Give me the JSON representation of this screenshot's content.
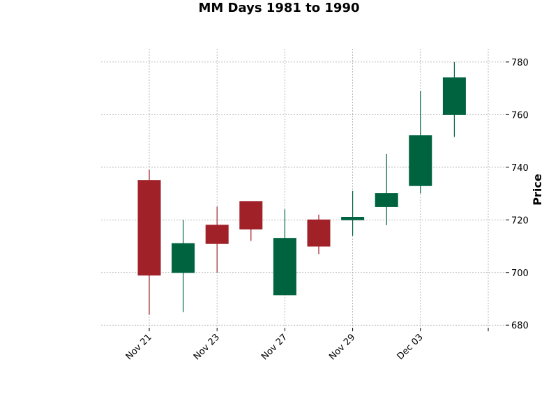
{
  "chart_data": {
    "type": "candlestick",
    "title": "MM Days 1981 to 1990",
    "ylabel": "Price",
    "xlabel": "",
    "ylim": [
      679,
      785
    ],
    "yticks": [
      680,
      700,
      720,
      740,
      760,
      780
    ],
    "xtick_labels": [
      {
        "index": 0,
        "label": "Nov 21"
      },
      {
        "index": 2,
        "label": "Nov 23"
      },
      {
        "index": 4,
        "label": "Nov 27"
      },
      {
        "index": 6,
        "label": "Nov 29"
      },
      {
        "index": 8,
        "label": "Dec 03"
      },
      {
        "index": 10,
        "label": ""
      }
    ],
    "grid": true,
    "colors": {
      "up": "#006340",
      "down": "#a02128",
      "grid": "#a8a8a8"
    },
    "candles": [
      {
        "open": 735,
        "high": 739,
        "low": 684,
        "close": 699
      },
      {
        "open": 700,
        "high": 720,
        "low": 685,
        "close": 711
      },
      {
        "open": 718,
        "high": 725,
        "low": 700,
        "close": 711
      },
      {
        "open": 727,
        "high": 727,
        "low": 712,
        "close": 716.5
      },
      {
        "open": 691.5,
        "high": 724,
        "low": 691.5,
        "close": 713
      },
      {
        "open": 720,
        "high": 722,
        "low": 707,
        "close": 710
      },
      {
        "open": 720,
        "high": 731,
        "low": 714,
        "close": 721
      },
      {
        "open": 725,
        "high": 745,
        "low": 718,
        "close": 730
      },
      {
        "open": 733,
        "high": 769,
        "low": 730,
        "close": 752
      },
      {
        "open": 760,
        "high": 780,
        "low": 751.5,
        "close": 774
      }
    ]
  }
}
